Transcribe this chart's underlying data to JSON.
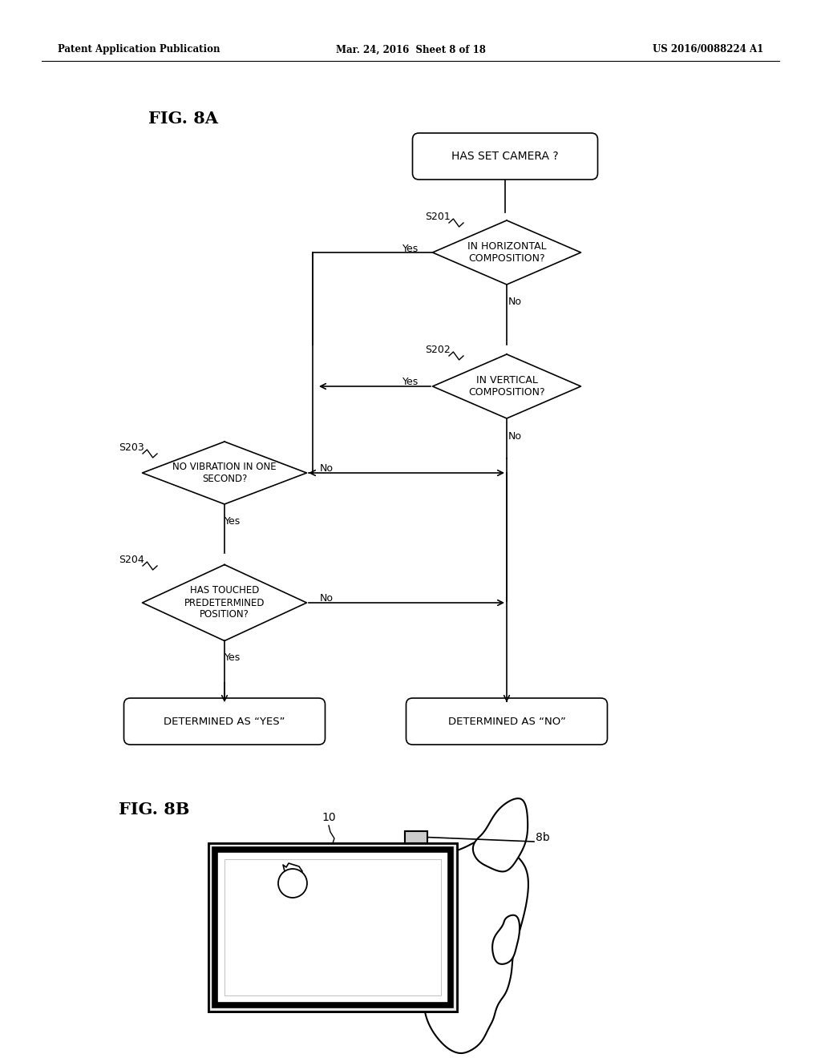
{
  "bg_color": "#ffffff",
  "header_left": "Patent Application Publication",
  "header_mid": "Mar. 24, 2016  Sheet 8 of 18",
  "header_right": "US 2016/0088224 A1",
  "fig_label_8a": "FIG. 8A",
  "fig_label_8b": "FIG. 8B",
  "start_text": "HAS SET CAMERA ?",
  "d1_text": "IN HORIZONTAL\nCOMPOSITION?",
  "d1_label": "S201",
  "d2_text": "IN VERTICAL\nCOMPOSITION?",
  "d2_label": "S202",
  "d3_text": "NO VIBRATION IN ONE\nSECOND?",
  "d3_label": "S203",
  "d4_text": "HAS TOUCHED\nPREDETERMINED\nPOSITION?",
  "d4_label": "S204",
  "end_yes_text": "DETERMINED AS “YES”",
  "end_no_text": "DETERMINED AS “NO”",
  "label_10": "10",
  "label_8b": "8b"
}
